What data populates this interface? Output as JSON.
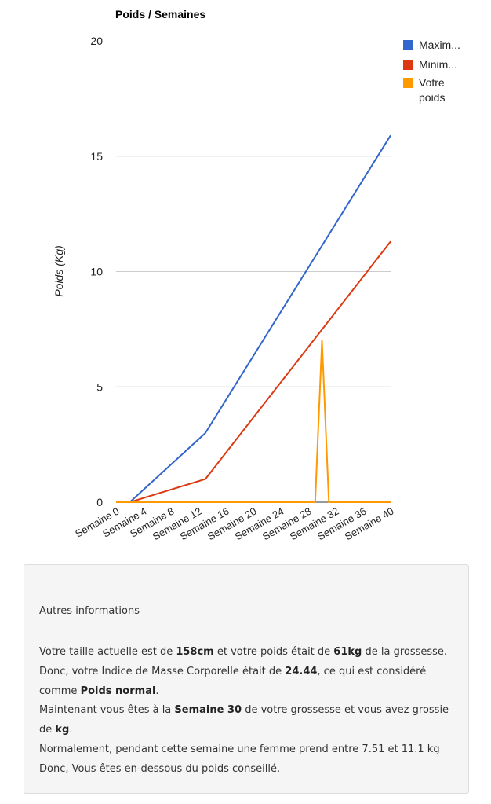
{
  "chart_data": {
    "type": "line",
    "title": "Poids / Semaines",
    "xlabel": "",
    "ylabel": "Poids (Kg)",
    "categories": [
      "Semaine 0",
      "Semaine 4",
      "Semaine 8",
      "Semaine 12",
      "Semaine 16",
      "Semaine 20",
      "Semaine 24",
      "Semaine 28",
      "Semaine 32",
      "Semaine 36",
      "Semaine 40"
    ],
    "y_ticks": [
      "0",
      "5",
      "10",
      "15",
      "20"
    ],
    "ylim": [
      0,
      20
    ],
    "xlim": [
      0,
      40
    ],
    "grid": true,
    "legend_position": "right",
    "series": [
      {
        "name": "Maxim...",
        "color": "#3366cc",
        "points": [
          [
            2,
            0
          ],
          [
            13,
            3
          ],
          [
            40,
            15.9
          ]
        ]
      },
      {
        "name": "Minim...",
        "color": "#dc3912",
        "points": [
          [
            2,
            0
          ],
          [
            13,
            1
          ],
          [
            40,
            11.3
          ]
        ]
      },
      {
        "name": "Votre poids",
        "color": "#ff9900",
        "points": [
          [
            0,
            0
          ],
          [
            29,
            0
          ],
          [
            30,
            7
          ],
          [
            31,
            0
          ],
          [
            40,
            0
          ]
        ]
      }
    ]
  },
  "info": {
    "title": "Autres informations",
    "line1_a": "Votre taille actuelle est de ",
    "height": "158cm",
    "line1_b": " et votre poids était de ",
    "weight": "61kg",
    "line1_c": " de la grossesse.",
    "line2_a": "Donc, votre Indice de Masse Corporelle était de ",
    "bmi": "24.44",
    "line2_b": ", ce qui est considéré comme ",
    "category": "Poids normal",
    "line2_c": ".",
    "line3_a": "Maintenant vous êtes à la ",
    "week": "Semaine 30",
    "line3_b": " de votre grossesse et vous avez grossie de ",
    "gain_unit": "kg",
    "line3_c": ".",
    "line4": "Normalement, pendant cette semaine une femme prend entre 7.51 et 11.1 kg Donc, Vous êtes en-dessous du poids conseillé."
  }
}
